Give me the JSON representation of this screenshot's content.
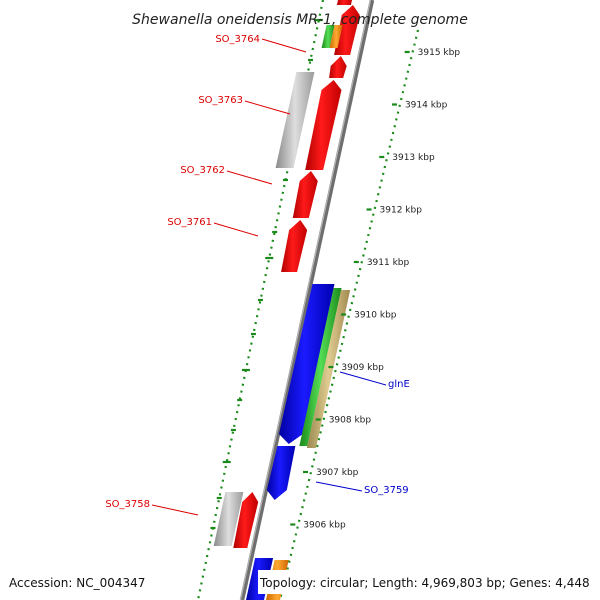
{
  "title": "Shewanella oneidensis MR-1, complete genome",
  "footer": {
    "accession": "Accession: NC_004347",
    "topology": "Topology: circular; Length: 4,969,803 bp; Genes: 4,448"
  },
  "axis": {
    "unit": "kbp",
    "ticks": [
      {
        "kbp": 3915,
        "label": "3915 kbp"
      },
      {
        "kbp": 3914,
        "label": "3914 kbp"
      },
      {
        "kbp": 3913,
        "label": "3913 kbp"
      },
      {
        "kbp": 3912,
        "label": "3912 kbp"
      },
      {
        "kbp": 3911,
        "label": "3911 kbp"
      },
      {
        "kbp": 3910,
        "label": "3910 kbp"
      },
      {
        "kbp": 3909,
        "label": "3909 kbp"
      },
      {
        "kbp": 3908,
        "label": "3908 kbp"
      },
      {
        "kbp": 3907,
        "label": "3907 kbp"
      },
      {
        "kbp": 3906,
        "label": "3906 kbp"
      }
    ]
  },
  "gene_labels": [
    {
      "name": "SO_3764",
      "color": "#dd0000"
    },
    {
      "name": "SO_3763",
      "color": "#dd0000"
    },
    {
      "name": "SO_3762",
      "color": "#dd0000"
    },
    {
      "name": "SO_3761",
      "color": "#dd0000"
    },
    {
      "name": "glnE",
      "color": "#0000cc"
    },
    {
      "name": "SO_3759",
      "color": "#0000cc"
    },
    {
      "name": "SO_3758",
      "color": "#dd0000"
    }
  ],
  "colors": {
    "forward_gene": "#ee0000",
    "reverse_gene": "#0000ee",
    "backbone": "#808080",
    "gc_dash": "#1a8a1a",
    "cog_green": "#33bb33",
    "cog_tan": "#c8b070",
    "cog_orange": "#ff8800",
    "cog_gray": "#c0c0c0"
  }
}
